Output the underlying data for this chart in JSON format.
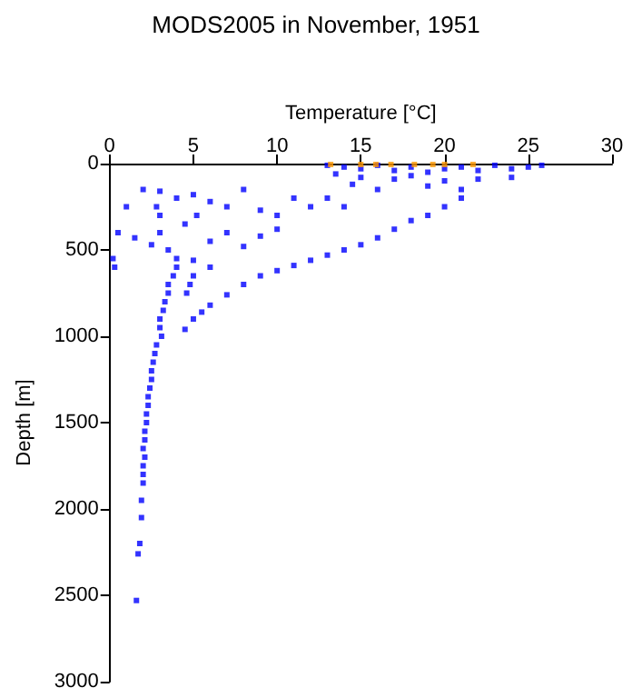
{
  "chart_data": {
    "type": "scatter",
    "title": "MODS2005 in November, 1951",
    "xlabel": "Temperature [°C]",
    "ylabel": "Depth [m]",
    "xlim": [
      0,
      30
    ],
    "xticks": [
      0,
      5,
      10,
      15,
      20,
      25,
      30
    ],
    "ylim": [
      3000,
      0
    ],
    "yticks": [
      0,
      500,
      1000,
      1500,
      2000,
      2500,
      3000
    ],
    "grid": false,
    "marker": "square",
    "series": [
      {
        "color": "#0000ff",
        "x": [
          13,
          14,
          15,
          16,
          17,
          18,
          19,
          20,
          21,
          22,
          23,
          24,
          25,
          25.8,
          15,
          17,
          20,
          22,
          24,
          18,
          13.5,
          14.5,
          16,
          19,
          21,
          13,
          14,
          21,
          20,
          19,
          18,
          17,
          16,
          15,
          14,
          13,
          12,
          11,
          10,
          9,
          8,
          7,
          6,
          5.5,
          5,
          4.5,
          2,
          3,
          4,
          5,
          6,
          7,
          8,
          9,
          10,
          11,
          12,
          10,
          9,
          7,
          6,
          8,
          3,
          1,
          0.5,
          1.5,
          0.2,
          0.3,
          2.5,
          3.5,
          4,
          5,
          6,
          2.8,
          4.5,
          5.2,
          3,
          4,
          3.8,
          3.5,
          3.5,
          3.3,
          3.2,
          3,
          3,
          3.1,
          2.8,
          2.7,
          2.6,
          2.5,
          2.5,
          2.4,
          2.3,
          2.3,
          2.2,
          2.2,
          2.1,
          2.1,
          2,
          2.1,
          2,
          2,
          2,
          1.9,
          1.9,
          1.8,
          1.7,
          1.6,
          5,
          4.8,
          4.6
        ],
        "values": [
          10,
          20,
          30,
          10,
          40,
          20,
          50,
          30,
          20,
          40,
          10,
          30,
          20,
          10,
          80,
          90,
          100,
          90,
          80,
          70,
          60,
          120,
          150,
          130,
          150,
          200,
          250,
          200,
          250,
          300,
          330,
          380,
          430,
          470,
          500,
          530,
          560,
          590,
          620,
          650,
          700,
          760,
          820,
          860,
          900,
          960,
          150,
          160,
          200,
          180,
          220,
          250,
          150,
          270,
          300,
          200,
          250,
          380,
          420,
          400,
          450,
          480,
          300,
          250,
          400,
          430,
          550,
          600,
          470,
          500,
          550,
          560,
          600,
          250,
          350,
          300,
          400,
          600,
          650,
          700,
          750,
          800,
          850,
          900,
          950,
          1000,
          1050,
          1100,
          1150,
          1200,
          1250,
          1300,
          1350,
          1400,
          1450,
          1500,
          1550,
          1600,
          1650,
          1700,
          1750,
          1800,
          1850,
          1950,
          2050,
          2200,
          2260,
          2530,
          650,
          700,
          750
        ]
      },
      {
        "color": "#ff9900",
        "x": [
          13.2,
          15,
          15.9,
          16.8,
          18.2,
          19.3,
          20,
          21.7
        ],
        "values": [
          5,
          5,
          5,
          5,
          5,
          5,
          5,
          5
        ]
      }
    ]
  }
}
